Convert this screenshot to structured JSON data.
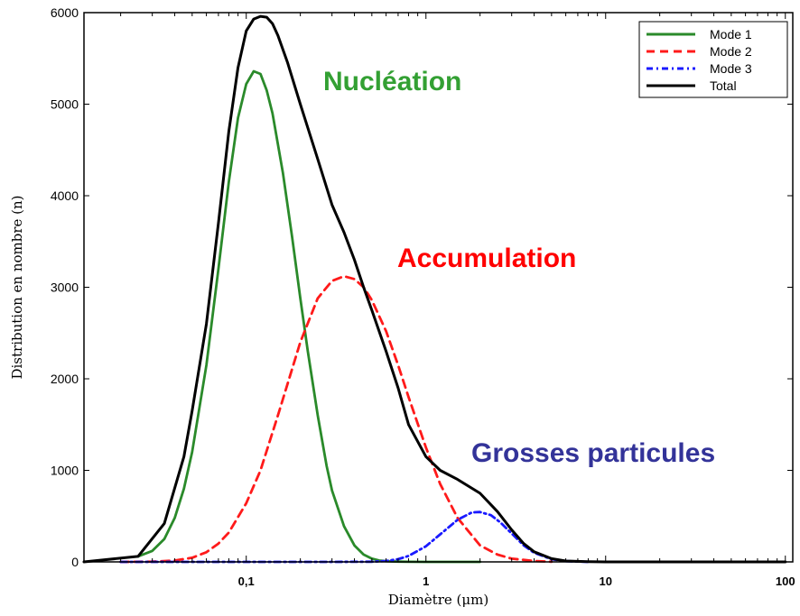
{
  "chart_data": {
    "type": "line",
    "xlabel": "Diamètre (μm)",
    "ylabel": "Distribution en nombre (n)",
    "xscale": "log",
    "xlim": [
      0.0125,
      110
    ],
    "ylim": [
      0,
      6000
    ],
    "grid": false,
    "legend_position": "top-right",
    "x_ticks": [
      {
        "value": 0.1,
        "label": "0,1"
      },
      {
        "value": 1,
        "label": "1"
      },
      {
        "value": 10,
        "label": "10"
      },
      {
        "value": 100,
        "label": "100"
      }
    ],
    "y_ticks": [
      0,
      1000,
      2000,
      3000,
      4000,
      5000,
      6000
    ],
    "series": [
      {
        "name": "Mode 1",
        "color": "#2a8a2a",
        "style": "solid",
        "x": [
          0.025,
          0.03,
          0.035,
          0.04,
          0.045,
          0.05,
          0.06,
          0.07,
          0.08,
          0.09,
          0.1,
          0.11,
          0.12,
          0.13,
          0.14,
          0.16,
          0.18,
          0.2,
          0.22,
          0.25,
          0.28,
          0.3,
          0.35,
          0.4,
          0.45,
          0.5,
          0.55,
          0.6,
          0.7,
          0.8,
          1.0,
          1.5,
          2.0
        ],
        "y": [
          60,
          120,
          250,
          480,
          800,
          1200,
          2150,
          3200,
          4150,
          4850,
          5220,
          5360,
          5330,
          5150,
          4900,
          4250,
          3550,
          2880,
          2300,
          1600,
          1050,
          780,
          390,
          180,
          80,
          35,
          15,
          8,
          3,
          1,
          0,
          0,
          0
        ]
      },
      {
        "name": "Mode 2",
        "color": "#ff1a1a",
        "style": "dashed",
        "x": [
          0.02,
          0.03,
          0.04,
          0.05,
          0.06,
          0.07,
          0.08,
          0.1,
          0.12,
          0.15,
          0.2,
          0.25,
          0.3,
          0.35,
          0.4,
          0.45,
          0.5,
          0.6,
          0.7,
          0.8,
          1.0,
          1.2,
          1.5,
          2.0,
          2.5,
          3.0,
          4.0,
          5.0
        ],
        "y": [
          0,
          3,
          15,
          45,
          105,
          200,
          320,
          640,
          1000,
          1600,
          2400,
          2880,
          3070,
          3120,
          3090,
          3000,
          2860,
          2520,
          2150,
          1800,
          1250,
          850,
          480,
          180,
          80,
          35,
          10,
          2
        ]
      },
      {
        "name": "Mode 3",
        "color": "#1a1aff",
        "style": "dashdot",
        "x": [
          0.02,
          0.1,
          0.3,
          0.5,
          0.6,
          0.7,
          0.8,
          1.0,
          1.2,
          1.5,
          1.8,
          2.0,
          2.3,
          2.6,
          3.0,
          3.5,
          4.0,
          5.0,
          6.0,
          8.0
        ],
        "y": [
          0,
          0,
          0,
          2,
          10,
          30,
          65,
          170,
          300,
          460,
          540,
          545,
          510,
          430,
          310,
          180,
          100,
          30,
          8,
          0
        ]
      },
      {
        "name": "Total",
        "color": "#000000",
        "style": "solid",
        "x": [
          0.0125,
          0.025,
          0.035,
          0.045,
          0.05,
          0.06,
          0.07,
          0.08,
          0.09,
          0.1,
          0.11,
          0.12,
          0.13,
          0.14,
          0.15,
          0.17,
          0.2,
          0.25,
          0.3,
          0.35,
          0.4,
          0.45,
          0.5,
          0.6,
          0.7,
          0.8,
          1.0,
          1.2,
          1.5,
          2.0,
          2.5,
          3.0,
          3.5,
          4.0,
          5.0,
          6.0,
          8.0,
          10,
          20,
          50,
          100
        ],
        "y": [
          0,
          60,
          420,
          1150,
          1650,
          2600,
          3700,
          4700,
          5400,
          5800,
          5930,
          5960,
          5950,
          5880,
          5750,
          5450,
          5000,
          4400,
          3900,
          3600,
          3300,
          3000,
          2750,
          2300,
          1900,
          1500,
          1150,
          1000,
          900,
          750,
          550,
          350,
          200,
          110,
          35,
          10,
          2,
          0,
          0,
          0,
          0
        ]
      }
    ],
    "annotations": [
      {
        "text": "Nucléation",
        "color": "#33a033"
      },
      {
        "text": "Accumulation",
        "color": "#ff0000"
      },
      {
        "text": "Grosses particules",
        "color": "#333399"
      }
    ]
  }
}
